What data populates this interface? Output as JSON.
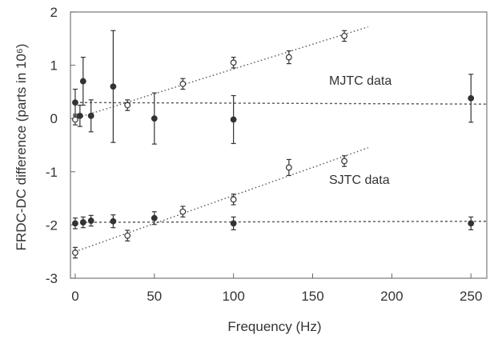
{
  "chart_data": {
    "type": "scatter",
    "xlabel": "Frequency (Hz)",
    "ylabel": "FRDC-DC difference (parts in 10⁶)",
    "xlim": [
      -3,
      260
    ],
    "ylim": [
      -3,
      2
    ],
    "xticks": [
      "0",
      "50",
      "100",
      "150",
      "200",
      "250"
    ],
    "yticks": [
      "-3",
      "-2",
      "-1",
      "0",
      "1",
      "2"
    ],
    "grid": "none",
    "annotations": [
      "MJTC data",
      "SJTC data"
    ],
    "series": [
      {
        "marker": "filled-circle",
        "x": [
          0,
          3,
          5,
          10,
          24,
          50,
          100,
          250
        ],
        "y": [
          0.3,
          0.05,
          0.7,
          0.05,
          0.6,
          0.0,
          -0.02,
          0.38
        ],
        "yerr": [
          0.25,
          0.2,
          0.45,
          0.3,
          1.05,
          0.48,
          0.45,
          0.45
        ]
      },
      {
        "marker": "open-circle",
        "x": [
          0,
          33,
          68,
          100,
          135,
          170
        ],
        "y": [
          -0.02,
          0.25,
          0.65,
          1.05,
          1.15,
          1.55
        ],
        "yerr": [
          0.1,
          0.1,
          0.1,
          0.1,
          0.12,
          0.1
        ]
      },
      {
        "marker": "filled-circle",
        "x": [
          0,
          5,
          10,
          24,
          50,
          100,
          250
        ],
        "y": [
          -1.97,
          -1.95,
          -1.92,
          -1.93,
          -1.87,
          -1.97,
          -1.97
        ],
        "yerr": [
          0.1,
          0.1,
          0.1,
          0.12,
          0.12,
          0.12,
          0.12
        ]
      },
      {
        "marker": "open-circle",
        "x": [
          0,
          33,
          68,
          100,
          135,
          170
        ],
        "y": [
          -2.52,
          -2.2,
          -1.75,
          -1.52,
          -0.92,
          -0.8
        ],
        "yerr": [
          0.1,
          0.1,
          0.1,
          0.1,
          0.15,
          0.1
        ]
      }
    ],
    "reference_lines": [
      {
        "style": "dashed",
        "x": [
          0,
          260
        ],
        "y": [
          0.3,
          0.27
        ]
      },
      {
        "style": "dotted",
        "x": [
          0,
          185
        ],
        "y": [
          0.0,
          1.72
        ]
      },
      {
        "style": "dashed",
        "x": [
          0,
          260
        ],
        "y": [
          -1.95,
          -1.93
        ]
      },
      {
        "style": "dotted",
        "x": [
          0,
          185
        ],
        "y": [
          -2.5,
          -0.55
        ]
      }
    ],
    "colors": {
      "marker": "#333333",
      "line": "#555555",
      "axis": "#666666"
    }
  }
}
